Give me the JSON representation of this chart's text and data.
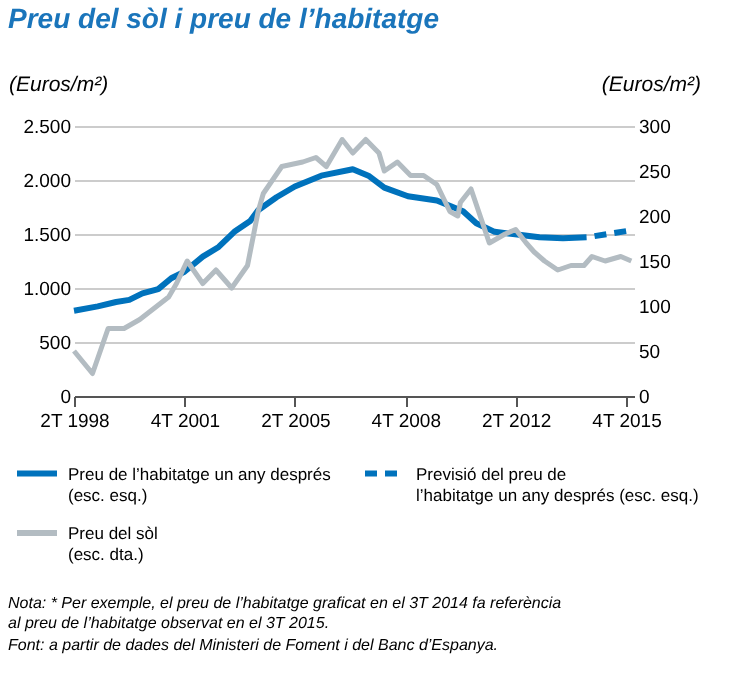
{
  "chart_data": {
    "type": "line",
    "title": "Preu del sòl i preu de l’habitatge",
    "ylabel": "(Euros/m²)",
    "y2label": "(Euros/m²)",
    "xlim": [
      "1998-04",
      "2016-01"
    ],
    "xticks": [
      {
        "value": "1998-04",
        "label": "2T 1998"
      },
      {
        "value": "2001-10",
        "label": "4T 2001"
      },
      {
        "value": "2005-04",
        "label": "2T 2005"
      },
      {
        "value": "2008-10",
        "label": "4T 2008"
      },
      {
        "value": "2012-04",
        "label": "2T 2012"
      },
      {
        "value": "2015-10",
        "label": "4T 2015"
      }
    ],
    "ylim": [
      0,
      2500
    ],
    "yticks": [
      {
        "value": 0,
        "label": "0"
      },
      {
        "value": 500,
        "label": "500"
      },
      {
        "value": 1000,
        "label": "1.000"
      },
      {
        "value": 1500,
        "label": "1.500"
      },
      {
        "value": 2000,
        "label": "2.000"
      },
      {
        "value": 2500,
        "label": "2.500"
      }
    ],
    "y2lim": [
      0,
      300
    ],
    "y2ticks": [
      0,
      50,
      100,
      150,
      200,
      250,
      300
    ],
    "grid": "y",
    "legend": "bottom",
    "series": [
      {
        "name": "Preu de l’habitatge un any després\n(esc. esq.)",
        "color": "#0072bc",
        "line_style": "solid",
        "x": [
          "1998-04",
          "1999-01",
          "1999-08",
          "2000-01",
          "2000-06",
          "2000-12",
          "2001-05",
          "2001-10",
          "2002-05",
          "2002-11",
          "2003-05",
          "2003-11",
          "2004-02",
          "2004-09",
          "2005-04",
          "2006-02",
          "2007-02",
          "2007-08",
          "2008-02",
          "2008-11",
          "2009-10",
          "2010-08",
          "2011-01",
          "2011-08",
          "2012-03",
          "2013-01",
          "2013-10",
          "2014-07"
        ],
        "values": [
          790,
          830,
          870,
          890,
          950,
          990,
          1090,
          1150,
          1290,
          1380,
          1520,
          1620,
          1720,
          1840,
          1940,
          2040,
          2100,
          2040,
          1930,
          1850,
          1810,
          1710,
          1600,
          1520,
          1500,
          1470,
          1460,
          1470
        ]
      },
      {
        "name": "Preu del sòl\n(esc. dta.)",
        "color": "#b3bcc2",
        "line_style": "solid",
        "axis": "y2",
        "x": [
          "1998-04",
          "1998-11",
          "1999-05",
          "1999-11",
          "2000-05",
          "2001-04",
          "2001-07",
          "2001-11",
          "2002-05",
          "2002-10",
          "2003-04",
          "2003-10",
          "2004-02",
          "2004-04",
          "2004-11",
          "2005-07",
          "2005-12",
          "2006-04",
          "2006-10",
          "2007-02",
          "2007-07",
          "2007-12",
          "2008-02",
          "2008-07",
          "2008-12",
          "2009-05",
          "2009-10",
          "2010-03",
          "2010-06",
          "2010-07",
          "2010-11",
          "2011-06",
          "2011-12",
          "2012-04",
          "2012-08",
          "2012-11",
          "2013-03",
          "2013-08",
          "2014-01",
          "2014-06",
          "2014-09",
          "2015-02",
          "2015-08",
          "2015-12"
        ],
        "values": [
          50,
          25,
          75,
          75,
          85,
          110,
          125,
          150,
          125,
          140,
          120,
          145,
          205,
          225,
          255,
          260,
          265,
          255,
          285,
          270,
          285,
          270,
          250,
          260,
          245,
          245,
          235,
          205,
          200,
          215,
          230,
          170,
          180,
          185,
          170,
          160,
          150,
          140,
          145,
          145,
          155,
          150,
          155,
          150
        ]
      },
      {
        "name": "Previsió del preu de\nl’habitatge un any després (esc. esq.)",
        "color": "#0072bc",
        "line_style": "dashed",
        "x": [
          "2014-10",
          "2015-03",
          "2015-11"
        ],
        "values": [
          1480,
          1500,
          1530
        ]
      }
    ],
    "annotations": [
      "Nota: * Per exemple, el preu de l’habitatge graficat en el 3T 2014 fa referència al preu de l’habitatge observat en el 3T 2015.",
      "Font: a partir de dades del Ministeri de Foment i del Banc d’Espanya."
    ]
  }
}
